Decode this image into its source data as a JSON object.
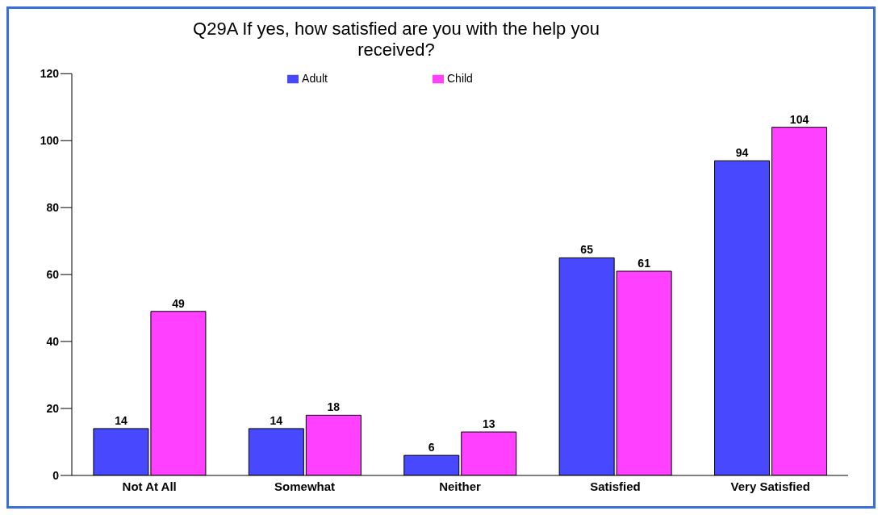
{
  "chart_data": {
    "type": "bar",
    "title": "Q29A If yes, how satisfied are you with the help you received?",
    "categories": [
      "Not At All",
      "Somewhat",
      "Neither",
      "Satisfied",
      "Very Satisfied"
    ],
    "series": [
      {
        "name": "Adult",
        "color": "#4848ff",
        "values": [
          14,
          14,
          6,
          65,
          94
        ]
      },
      {
        "name": "Child",
        "color": "#ff40ff",
        "values": [
          49,
          18,
          13,
          61,
          104
        ]
      }
    ],
    "ylim": [
      0,
      120
    ],
    "yticks": [
      0,
      20,
      40,
      60,
      80,
      100,
      120
    ],
    "grid": false,
    "legend": "top",
    "data_labels": true
  }
}
